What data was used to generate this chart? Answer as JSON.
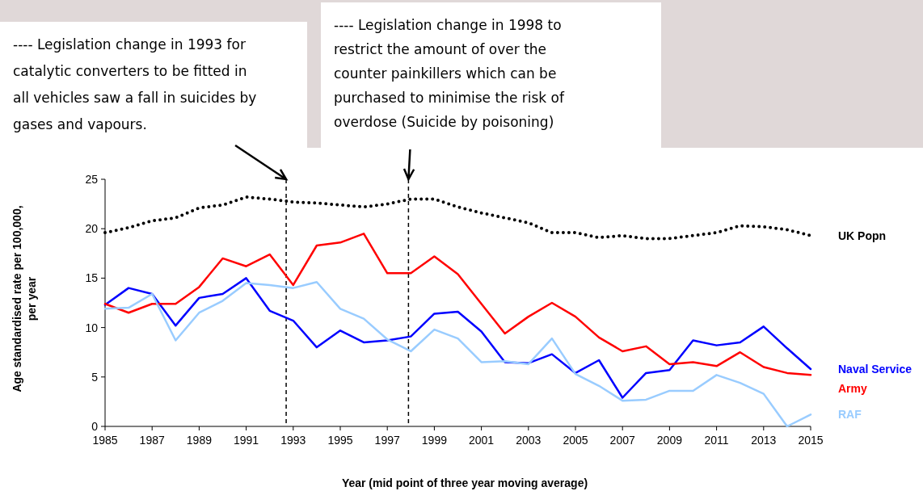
{
  "chart_data": {
    "type": "line",
    "xlabel": "Year (mid point of three year moving average)",
    "ylabel": "Age standardised rate per 100,000, per year",
    "x": [
      1985,
      1986,
      1987,
      1988,
      1989,
      1990,
      1991,
      1992,
      1993,
      1994,
      1995,
      1996,
      1997,
      1998,
      1999,
      2000,
      2001,
      2002,
      2003,
      2004,
      2005,
      2006,
      2007,
      2008,
      2009,
      2010,
      2011,
      2012,
      2013,
      2014,
      2015
    ],
    "xlim": [
      1985,
      2015
    ],
    "xticks": [
      1985,
      1987,
      1989,
      1991,
      1993,
      1995,
      1997,
      1999,
      2001,
      2003,
      2005,
      2007,
      2009,
      2011,
      2013,
      2015
    ],
    "ylim": [
      0,
      25
    ],
    "yticks": [
      0,
      5,
      10,
      15,
      20,
      25
    ],
    "grid": false,
    "legend": "right",
    "series": [
      {
        "name": "UK Popn",
        "color": "#000000",
        "line_style": "dotted",
        "values": [
          19.6,
          20.1,
          20.8,
          21.1,
          22.1,
          22.4,
          23.2,
          23.0,
          22.7,
          22.6,
          22.4,
          22.2,
          22.5,
          23.0,
          23.0,
          22.2,
          21.6,
          21.1,
          20.6,
          19.6,
          19.6,
          19.1,
          19.3,
          19.0,
          19.0,
          19.3,
          19.6,
          20.3,
          20.2,
          19.9,
          19.3
        ]
      },
      {
        "name": "Naval Service",
        "color": "#0000ff",
        "values": [
          12.3,
          14.0,
          13.4,
          10.2,
          13.0,
          13.4,
          15.0,
          11.7,
          10.7,
          8.0,
          9.7,
          8.5,
          8.7,
          9.1,
          11.4,
          11.6,
          9.6,
          6.5,
          6.4,
          7.3,
          5.4,
          6.7,
          2.9,
          5.4,
          5.7,
          8.7,
          8.2,
          8.5,
          10.1,
          7.9,
          5.8
        ]
      },
      {
        "name": "Army",
        "color": "#ff0000",
        "values": [
          12.4,
          11.5,
          12.4,
          12.4,
          14.1,
          17.0,
          16.2,
          17.4,
          14.3,
          18.3,
          18.6,
          19.5,
          15.5,
          15.5,
          17.2,
          15.4,
          12.4,
          9.4,
          11.1,
          12.5,
          11.1,
          9.0,
          7.6,
          8.1,
          6.3,
          6.5,
          6.1,
          7.5,
          6.0,
          5.4,
          5.2
        ]
      },
      {
        "name": "RAF",
        "color": "#99ccff",
        "values": [
          11.9,
          12.0,
          13.4,
          8.7,
          11.5,
          12.7,
          14.5,
          14.3,
          14.0,
          14.6,
          11.9,
          10.9,
          8.8,
          7.6,
          9.8,
          8.9,
          6.5,
          6.6,
          6.3,
          8.9,
          5.3,
          4.1,
          2.6,
          2.7,
          3.6,
          3.6,
          5.2,
          4.4,
          3.3,
          0,
          1.2
        ]
      }
    ],
    "ref_lines": [
      {
        "axis": "x",
        "value": 1992.7,
        "line_style": "dashed",
        "color": "#000000"
      },
      {
        "axis": "x",
        "value": 1997.9,
        "line_style": "dashed",
        "color": "#000000"
      }
    ],
    "annotations": [
      "---- Legislation change in 1993 for catalytic converters to be fitted in all vehicles saw a fall in suicides by gases and vapours.",
      "---- Legislation change in 1998 to restrict the amount of over the counter painkillers which can be purchased to minimise the risk of overdose (Suicide by poisoning)"
    ]
  }
}
